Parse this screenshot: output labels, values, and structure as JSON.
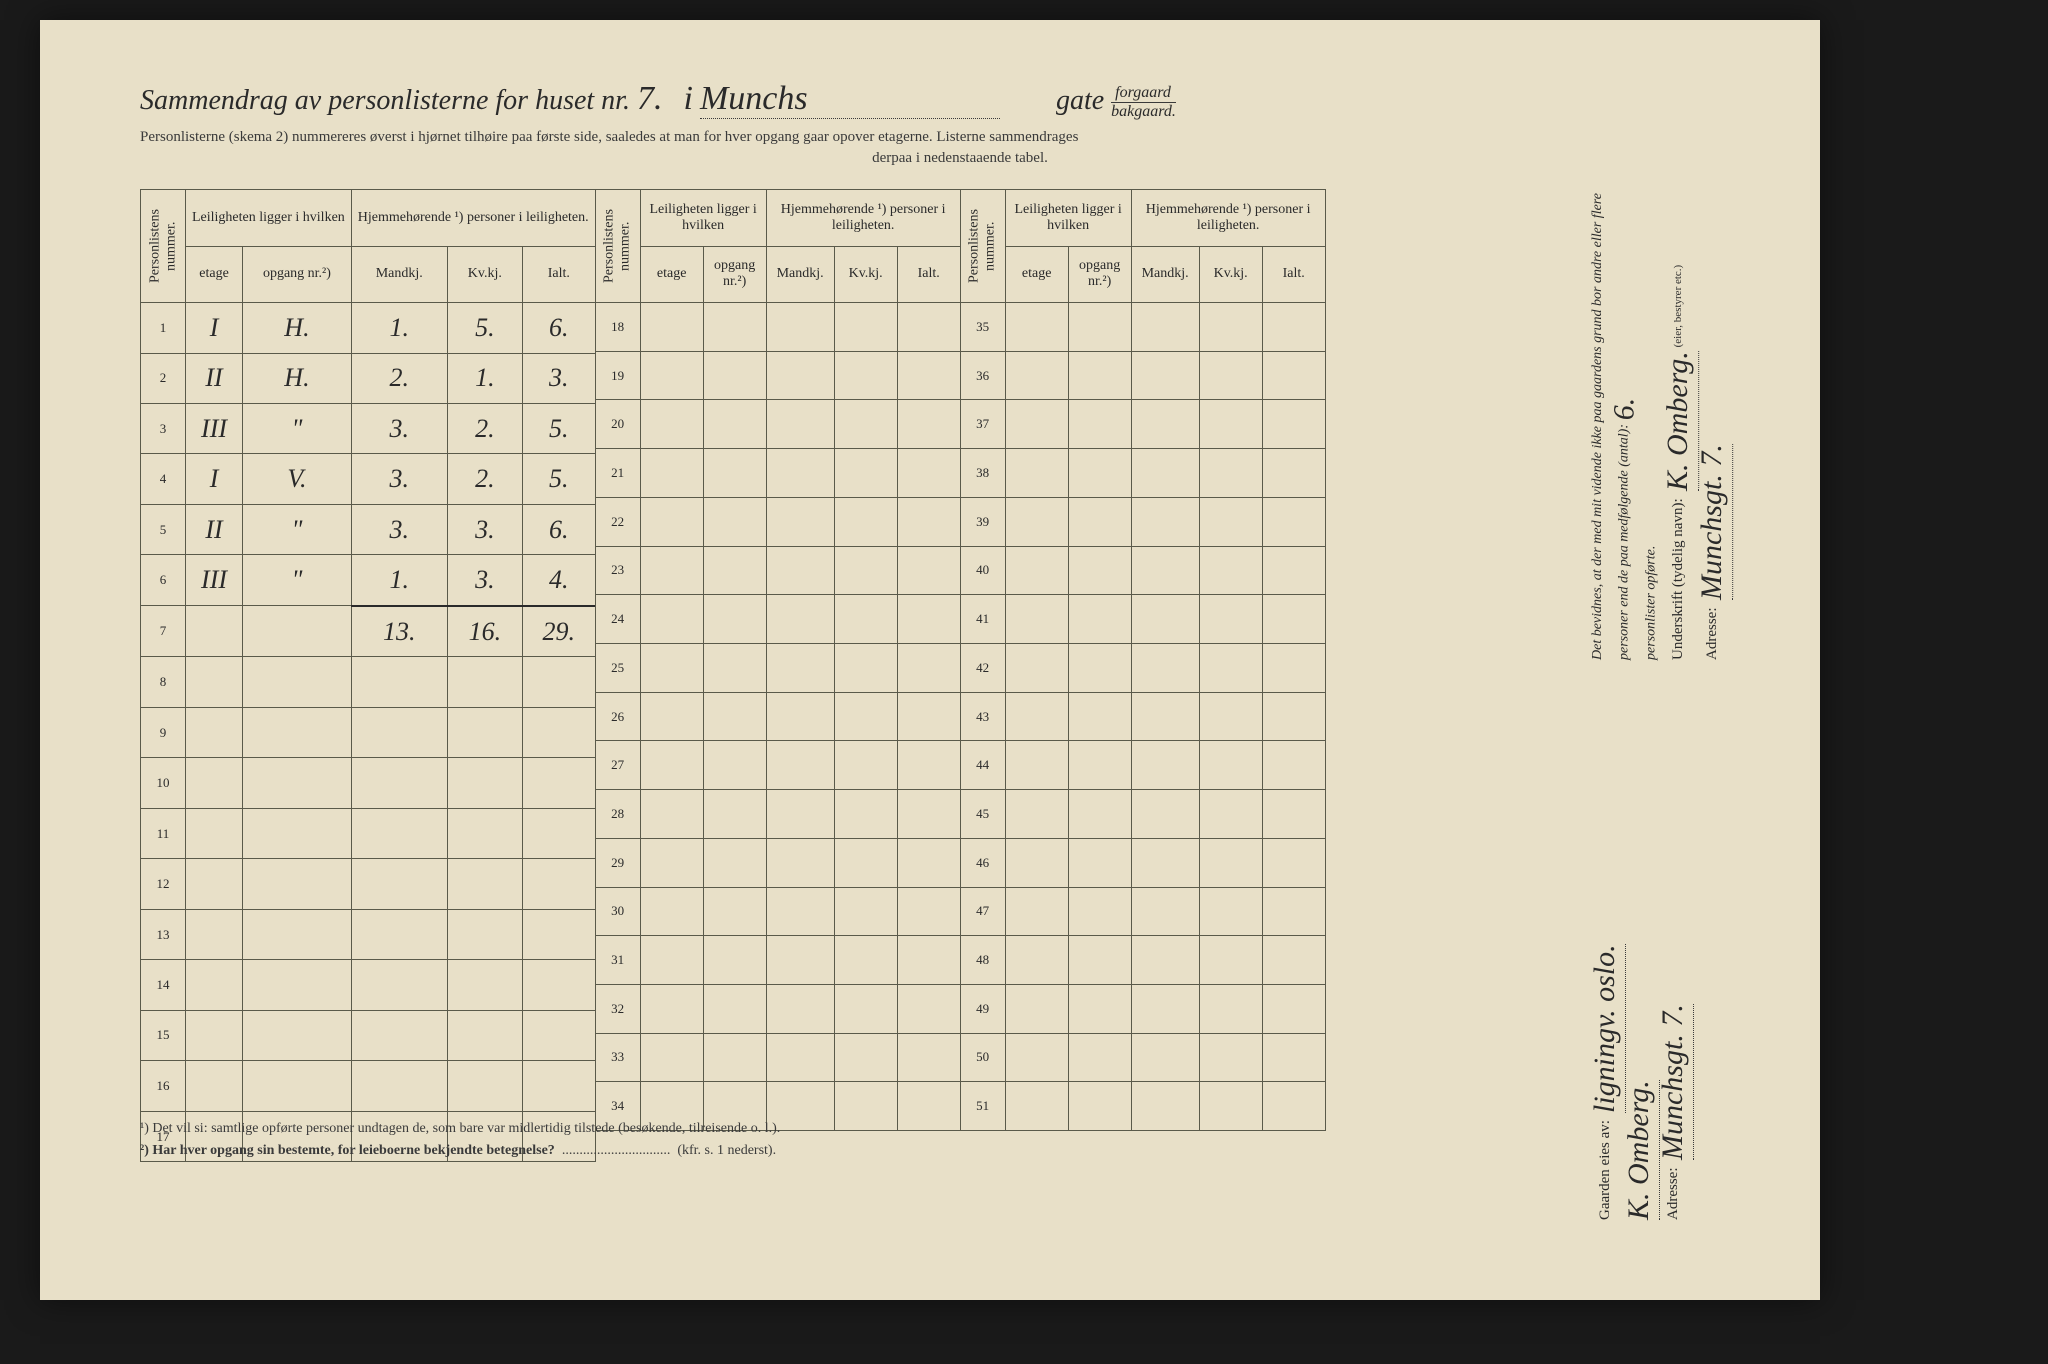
{
  "title": {
    "prefix": "Sammendrag av personlisterne for huset nr.",
    "house_nr_hw": "7.",
    "mid": "i",
    "street_hw": "Munchs",
    "gate_label": "gate",
    "forgaard": "forgaard",
    "bakgaard": "bakgaard."
  },
  "subtitle1": "Personlisterne (skema 2) nummereres øverst i hjørnet tilhøire paa første side, saaledes at man for hver opgang gaar opover etagerne.  Listerne sammendrages",
  "subtitle2": "derpaa i nedenstaaende tabel.",
  "headers": {
    "personlistens_nummer": "Personlistens nummer.",
    "leiligheten": "Leiligheten ligger i hvilken",
    "hjemmehorende": "Hjemmehørende ¹) personer i leiligheten.",
    "etage": "etage",
    "opgang": "opgang nr.²)",
    "mandkj": "Mandkj.",
    "kvkj": "Kv.kj.",
    "ialt": "Ialt."
  },
  "rows": [
    {
      "n": "1",
      "etage": "I",
      "opgang": "H.",
      "m": "1.",
      "k": "5.",
      "i": "6."
    },
    {
      "n": "2",
      "etage": "II",
      "opgang": "H.",
      "m": "2.",
      "k": "1.",
      "i": "3."
    },
    {
      "n": "3",
      "etage": "III",
      "opgang": "\"",
      "m": "3.",
      "k": "2.",
      "i": "5."
    },
    {
      "n": "4",
      "etage": "I",
      "opgang": "V.",
      "m": "3.",
      "k": "2.",
      "i": "5."
    },
    {
      "n": "5",
      "etage": "II",
      "opgang": "\"",
      "m": "3.",
      "k": "3.",
      "i": "6."
    },
    {
      "n": "6",
      "etage": "III",
      "opgang": "\"",
      "m": "1.",
      "k": "3.",
      "i": "4."
    }
  ],
  "sum": {
    "n": "7",
    "m": "13.",
    "k": "16.",
    "i": "29."
  },
  "empty_block1": [
    "8",
    "9",
    "10",
    "11",
    "12",
    "13",
    "14",
    "15",
    "16",
    "17"
  ],
  "block2_nums": [
    "18",
    "19",
    "20",
    "21",
    "22",
    "23",
    "24",
    "25",
    "26",
    "27",
    "28",
    "29",
    "30",
    "31",
    "32",
    "33",
    "34"
  ],
  "block3_nums": [
    "35",
    "36",
    "37",
    "38",
    "39",
    "40",
    "41",
    "42",
    "43",
    "44",
    "45",
    "46",
    "47",
    "48",
    "49",
    "50",
    "51"
  ],
  "footnote1": "¹)   Det vil si: samtlige opførte personer undtagen de, som bare var midlertidig tilstede (besøkende, tilreisende o. l.).",
  "footnote2_a": "²)   Har hver opgang sin bestemte, for leieboerne bekjendte betegnelse?",
  "footnote2_b": "(kfr. s. 1 nederst).",
  "right": {
    "gaarden_eies": "Gaarden eies av:",
    "owner_hw": "ligningv. oslo.",
    "owner_sig_hw": "K. Omberg.",
    "adresse_label": "Adresse:",
    "adresse_hw": "Munchsgt. 7.",
    "declaration": "Det bevidnes, at der med mit vidende ikke paa gaardens grund bor andre eller flere personer end de paa medfølgende (antal):",
    "antal_hw": "6.",
    "declaration2": "personlister opførte.",
    "underskrift_label": "Underskrift (tydelig navn):",
    "underskrift_hw": "K. Omberg.",
    "role": "(eier, bestyrer etc.)",
    "adresse2_hw": "Munchsgt. 7."
  },
  "dotline": "..............................."
}
